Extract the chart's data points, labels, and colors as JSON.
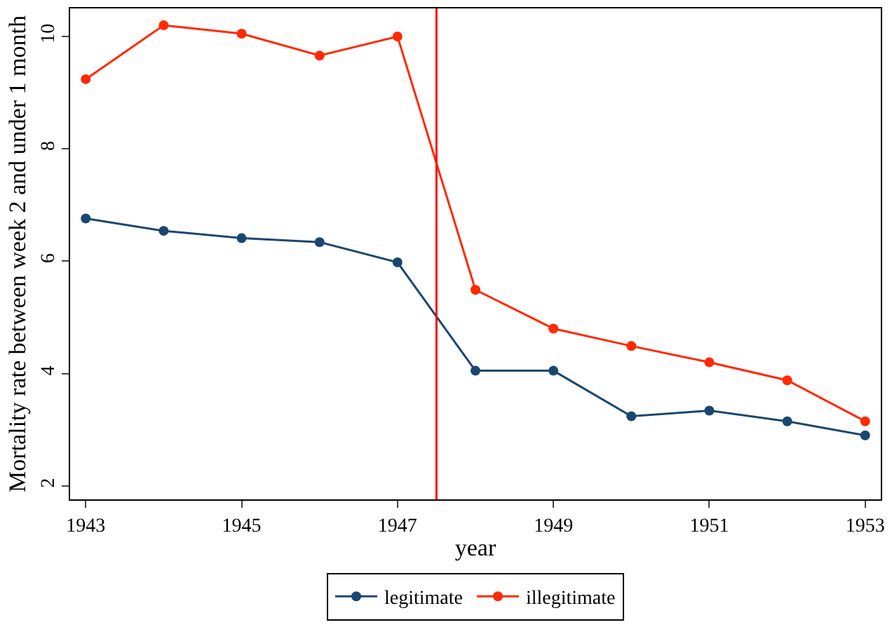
{
  "chart_data": {
    "type": "line",
    "xlabel": "year",
    "ylabel": "Mortality rate between week 2 and under 1 month",
    "x": [
      1943,
      1944,
      1945,
      1946,
      1947,
      1948,
      1949,
      1950,
      1951,
      1952,
      1953
    ],
    "series": [
      {
        "name": "legitimate",
        "color": "#1a476f",
        "values": [
          6.76,
          6.54,
          6.41,
          6.34,
          5.98,
          4.05,
          4.05,
          3.24,
          3.34,
          3.15,
          2.9
        ]
      },
      {
        "name": "illegitimate",
        "color": "#ff2a00",
        "values": [
          9.24,
          10.2,
          10.05,
          9.66,
          10.0,
          5.49,
          4.8,
          4.49,
          4.2,
          3.88,
          3.15
        ]
      }
    ],
    "xlim": [
      1942.8,
      1953.2
    ],
    "ylim": [
      1.76,
      10.5
    ],
    "xticks": [
      1943,
      1945,
      1947,
      1949,
      1951,
      1953
    ],
    "yticks": [
      2,
      4,
      6,
      8,
      10
    ],
    "ref_lines": [
      {
        "axis": "x",
        "value": 1947.5,
        "color": "#ff0000"
      }
    ],
    "marker": "circle",
    "line_style": "solid",
    "legend": "bottom"
  }
}
